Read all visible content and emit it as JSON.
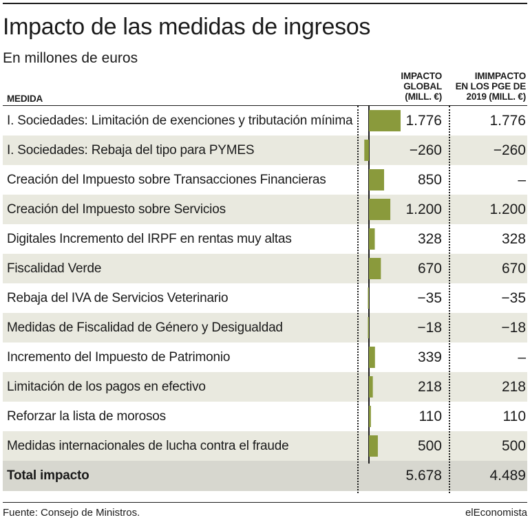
{
  "header": {
    "title": "Impacto de las medidas de ingresos",
    "subtitle": "En millones de euros"
  },
  "columns": {
    "medida": "MEDIDA",
    "global": [
      "IMPACTO",
      "GLOBAL",
      "(MILL. €)"
    ],
    "pge": [
      "IMIMPACTO",
      "EN LOS PGE DE",
      "2019 (MILL. €)"
    ]
  },
  "chart_data": {
    "type": "bar",
    "categories": [
      "I. Sociedades: Limitación de exenciones y tributación mínima",
      "I. Sociedades: Rebaja del tipo para PYMES",
      "Creación del Impuesto sobre Transacciones Financieras",
      "Creación del Impuesto sobre Servicios",
      "Digitales Incremento del IRPF en rentas muy altas",
      "Fiscalidad Verde",
      "Rebaja del IVA de Servicios Veterinario",
      "Medidas de Fiscalidad de Género y Desigualdad",
      "Incremento del Impuesto de Patrimonio",
      "Limitación de los pagos en efectivo",
      "Reforzar la lista de morosos",
      "Medidas internacionales de lucha contra el fraude"
    ],
    "series": [
      {
        "values": [
          1776,
          -260,
          850,
          1200,
          328,
          670,
          -35,
          -18,
          339,
          218,
          110,
          500
        ]
      }
    ],
    "bar_color": "#8a9a3c"
  },
  "rows": [
    {
      "label": "I. Sociedades: Limitación de exenciones y tributación mínima",
      "global": "1.776",
      "pge": "1.776"
    },
    {
      "label": "I. Sociedades: Rebaja del tipo para PYMES",
      "global": "−260",
      "pge": "−260"
    },
    {
      "label": "Creación del Impuesto sobre Transacciones Financieras",
      "global": "850",
      "pge": "–"
    },
    {
      "label": "Creación del Impuesto sobre Servicios",
      "global": "1.200",
      "pge": "1.200"
    },
    {
      "label": "Digitales Incremento del IRPF en rentas muy altas",
      "global": "328",
      "pge": "328"
    },
    {
      "label": "Fiscalidad Verde",
      "global": "670",
      "pge": "670"
    },
    {
      "label": "Rebaja del IVA de Servicios Veterinario",
      "global": "−35",
      "pge": "−35"
    },
    {
      "label": "Medidas de Fiscalidad de Género y Desigualdad",
      "global": "−18",
      "pge": "−18"
    },
    {
      "label": "Incremento del Impuesto de Patrimonio",
      "global": "339",
      "pge": "–"
    },
    {
      "label": "Limitación de los pagos en efectivo",
      "global": "218",
      "pge": "218"
    },
    {
      "label": "Reforzar la lista de morosos",
      "global": "110",
      "pge": "110"
    },
    {
      "label": "Medidas internacionales de lucha contra el fraude",
      "global": "500",
      "pge": "500"
    }
  ],
  "total": {
    "label": "Total impacto",
    "global": "5.678",
    "pge": "4.489"
  },
  "footer": {
    "source": "Fuente: Consejo de Ministros.",
    "brand": "elEconomista"
  }
}
